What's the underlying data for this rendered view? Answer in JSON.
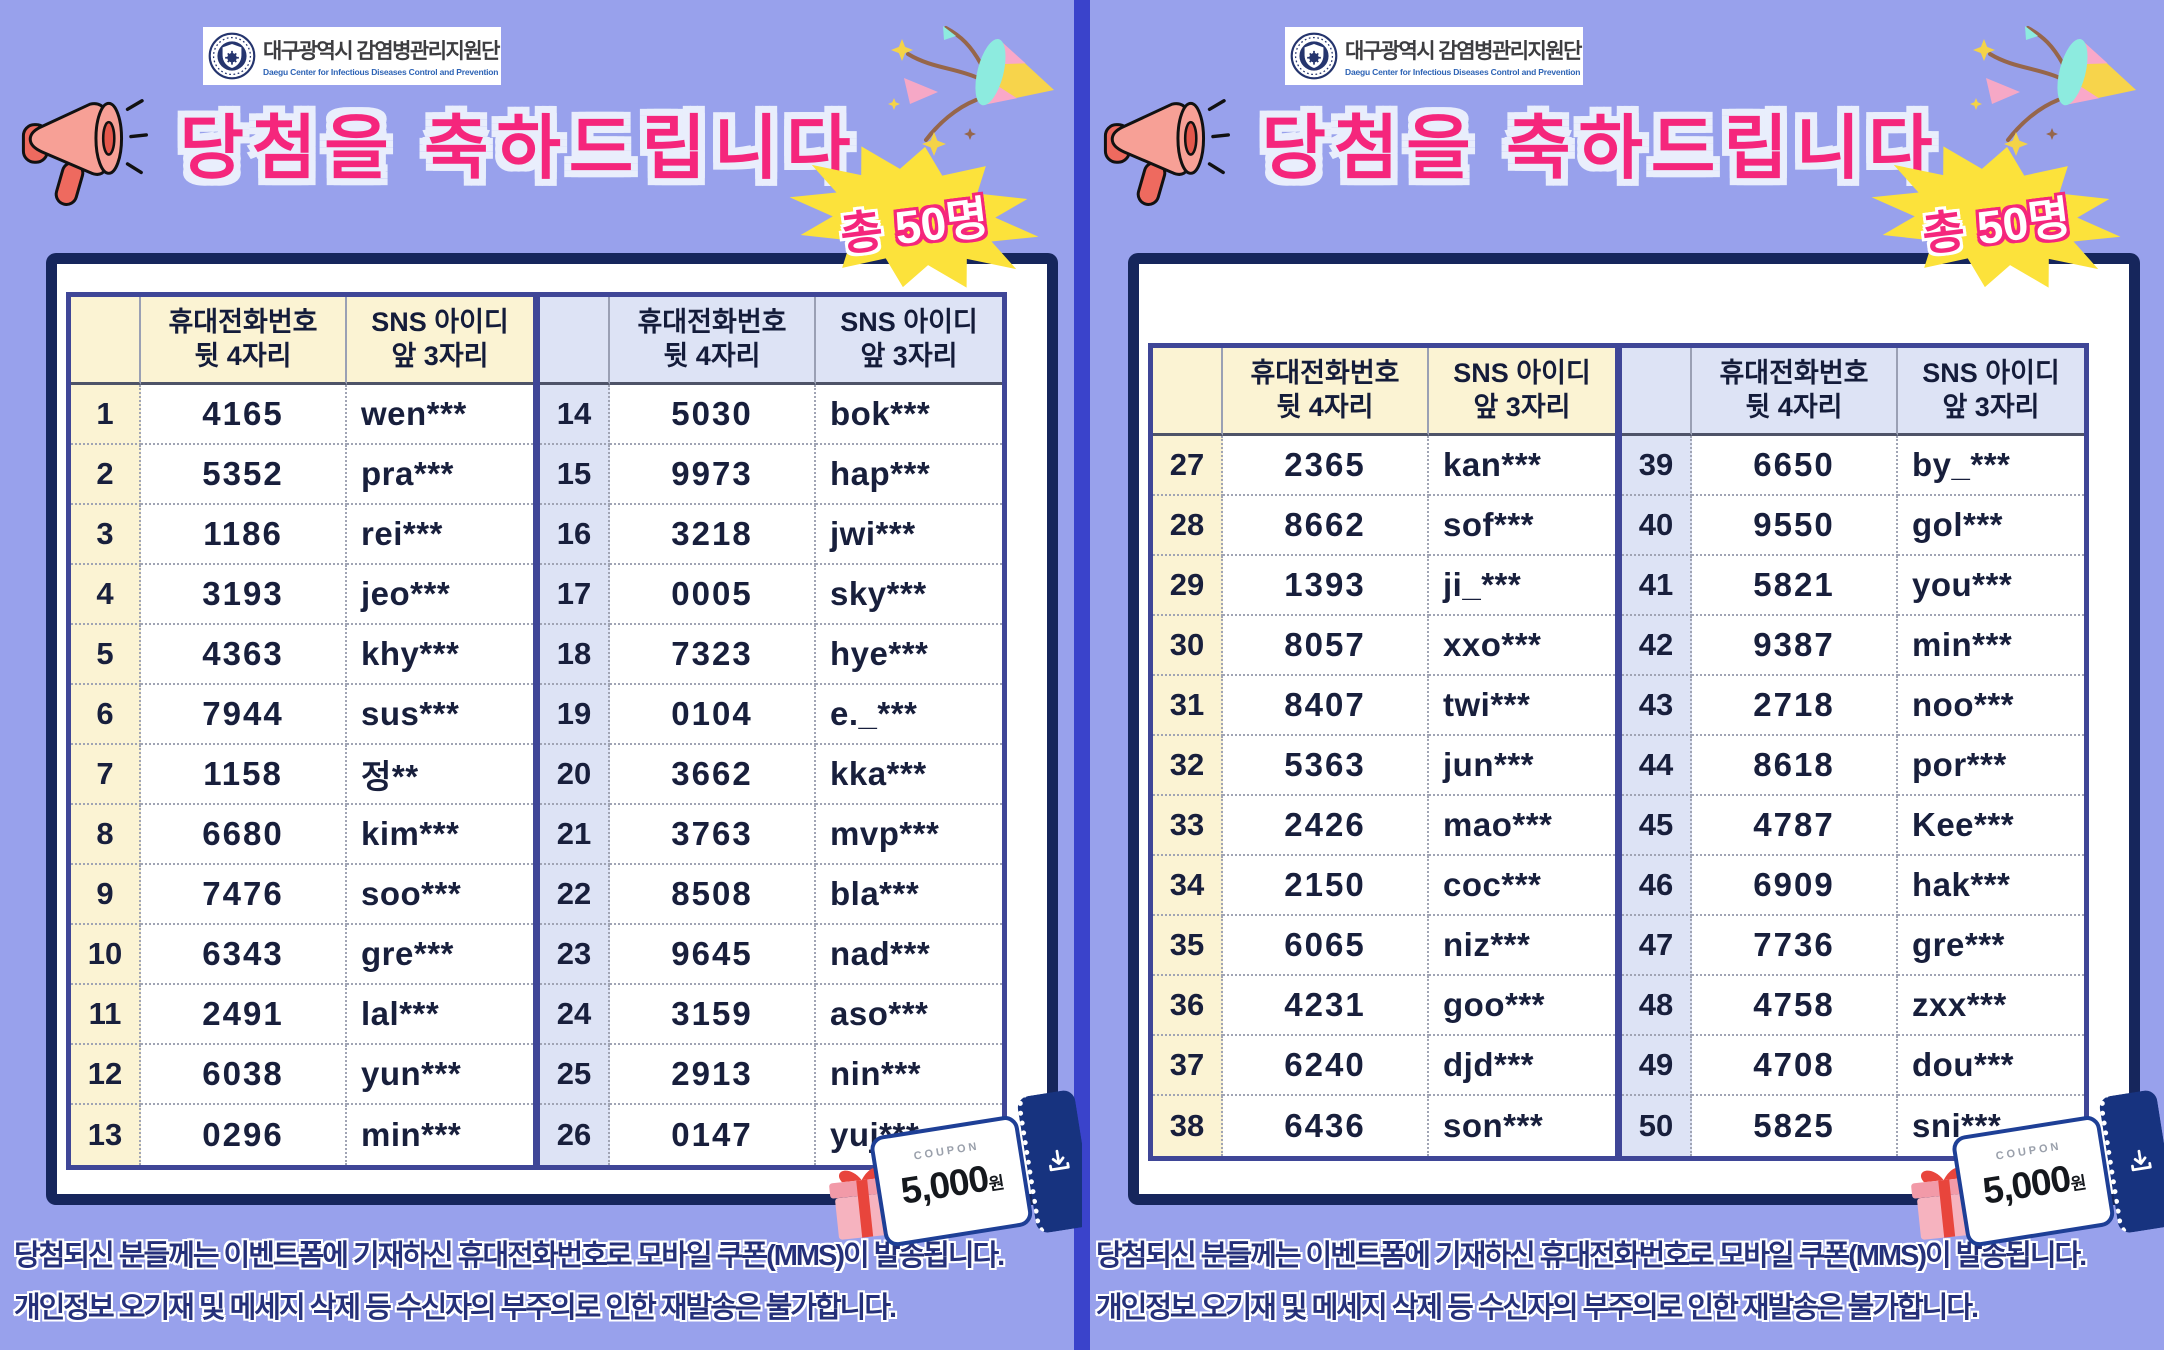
{
  "colors": {
    "background": "#98A1EC",
    "divider": "#3A43CB",
    "accent_pink": "#F5267C",
    "badge_yellow": "#FCE23B",
    "navy": "#16265C",
    "table_border": "#3F4697",
    "header_cream": "#FBF3D3",
    "header_lightblue": "#DDE3F5"
  },
  "header": {
    "org_name": "대구광역시 감염병관리지원단",
    "org_subtitle": "Daegu Center for Infectious Diseases Control and Prevention",
    "title": "당첨을 축하드립니다",
    "badge_prefix": "총",
    "badge_count": "50명"
  },
  "table": {
    "header_phone_line1": "휴대전화번호",
    "header_phone_line2": "뒷 4자리",
    "header_sns_line1": "SNS 아이디",
    "header_sns_line2": "앞 3자리"
  },
  "winners": [
    {
      "no": 1,
      "phone": "4165",
      "sns": "wen***"
    },
    {
      "no": 2,
      "phone": "5352",
      "sns": "pra***"
    },
    {
      "no": 3,
      "phone": "1186",
      "sns": "rei***"
    },
    {
      "no": 4,
      "phone": "3193",
      "sns": "jeo***"
    },
    {
      "no": 5,
      "phone": "4363",
      "sns": "khy***"
    },
    {
      "no": 6,
      "phone": "7944",
      "sns": "sus***"
    },
    {
      "no": 7,
      "phone": "1158",
      "sns": "정**"
    },
    {
      "no": 8,
      "phone": "6680",
      "sns": "kim***"
    },
    {
      "no": 9,
      "phone": "7476",
      "sns": "soo***"
    },
    {
      "no": 10,
      "phone": "6343",
      "sns": "gre***"
    },
    {
      "no": 11,
      "phone": "2491",
      "sns": "lal***"
    },
    {
      "no": 12,
      "phone": "6038",
      "sns": "yun***"
    },
    {
      "no": 13,
      "phone": "0296",
      "sns": "min***"
    },
    {
      "no": 14,
      "phone": "5030",
      "sns": "bok***"
    },
    {
      "no": 15,
      "phone": "9973",
      "sns": "hap***"
    },
    {
      "no": 16,
      "phone": "3218",
      "sns": "jwi***"
    },
    {
      "no": 17,
      "phone": "0005",
      "sns": "sky***"
    },
    {
      "no": 18,
      "phone": "7323",
      "sns": "hye***"
    },
    {
      "no": 19,
      "phone": "0104",
      "sns": "e._***"
    },
    {
      "no": 20,
      "phone": "3662",
      "sns": "kka***"
    },
    {
      "no": 21,
      "phone": "3763",
      "sns": "mvp***"
    },
    {
      "no": 22,
      "phone": "8508",
      "sns": "bla***"
    },
    {
      "no": 23,
      "phone": "9645",
      "sns": "nad***"
    },
    {
      "no": 24,
      "phone": "3159",
      "sns": "aso***"
    },
    {
      "no": 25,
      "phone": "2913",
      "sns": "nin***"
    },
    {
      "no": 26,
      "phone": "0147",
      "sns": "yuj***"
    },
    {
      "no": 27,
      "phone": "2365",
      "sns": "kan***"
    },
    {
      "no": 28,
      "phone": "8662",
      "sns": "sof***"
    },
    {
      "no": 29,
      "phone": "1393",
      "sns": "ji_***"
    },
    {
      "no": 30,
      "phone": "8057",
      "sns": "xxo***"
    },
    {
      "no": 31,
      "phone": "8407",
      "sns": "twi***"
    },
    {
      "no": 32,
      "phone": "5363",
      "sns": "jun***"
    },
    {
      "no": 33,
      "phone": "2426",
      "sns": "mao***"
    },
    {
      "no": 34,
      "phone": "2150",
      "sns": "coc***"
    },
    {
      "no": 35,
      "phone": "6065",
      "sns": "niz***"
    },
    {
      "no": 36,
      "phone": "4231",
      "sns": "goo***"
    },
    {
      "no": 37,
      "phone": "6240",
      "sns": "djd***"
    },
    {
      "no": 38,
      "phone": "6436",
      "sns": "son***"
    },
    {
      "no": 39,
      "phone": "6650",
      "sns": "by_***"
    },
    {
      "no": 40,
      "phone": "9550",
      "sns": "gol***"
    },
    {
      "no": 41,
      "phone": "5821",
      "sns": "you***"
    },
    {
      "no": 42,
      "phone": "9387",
      "sns": "min***"
    },
    {
      "no": 43,
      "phone": "2718",
      "sns": "noo***"
    },
    {
      "no": 44,
      "phone": "8618",
      "sns": "por***"
    },
    {
      "no": 45,
      "phone": "4787",
      "sns": "Kee***"
    },
    {
      "no": 46,
      "phone": "6909",
      "sns": "hak***"
    },
    {
      "no": 47,
      "phone": "7736",
      "sns": "gre***"
    },
    {
      "no": 48,
      "phone": "4758",
      "sns": "zxx***"
    },
    {
      "no": 49,
      "phone": "4708",
      "sns": "dou***"
    },
    {
      "no": 50,
      "phone": "5825",
      "sns": "sni***"
    }
  ],
  "panels": [
    {
      "groups": [
        {
          "start": 1,
          "end": 13
        },
        {
          "start": 14,
          "end": 26
        }
      ]
    },
    {
      "groups": [
        {
          "start": 27,
          "end": 38
        },
        {
          "start": 39,
          "end": 50
        }
      ]
    }
  ],
  "coupon": {
    "label": "COUPON",
    "amount": "5,000",
    "unit": "원"
  },
  "footer": {
    "line1": "당첨되신 분들께는 이벤트폼에 기재하신 휴대전화번호로  모바일 쿠폰(MMS)이 발송됩니다.",
    "line2": "개인정보 오기재 및 메세지 삭제 등 수신자의 부주의로 인한 재발송은 불가합니다."
  }
}
